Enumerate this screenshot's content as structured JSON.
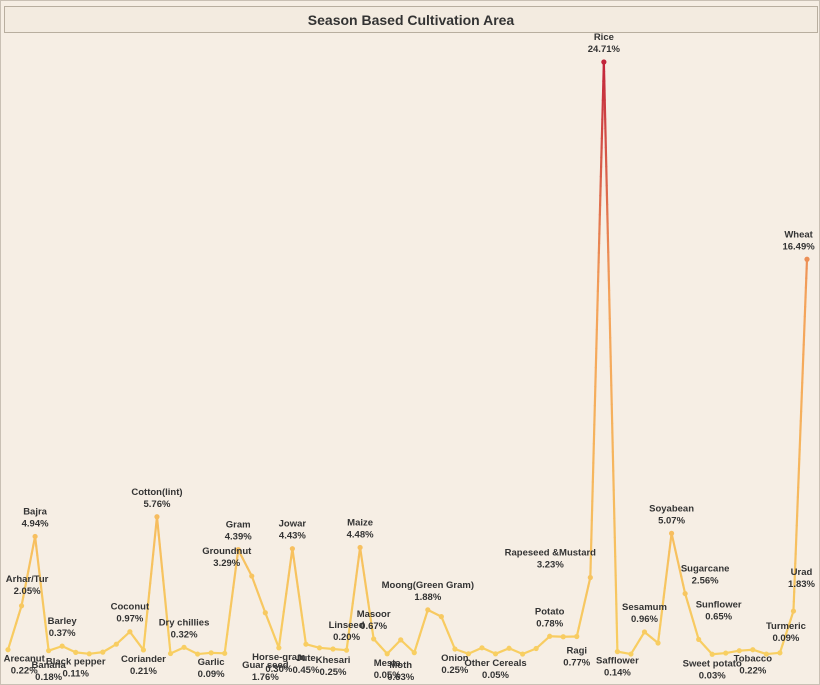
{
  "chart_data": {
    "type": "line",
    "title": "Season Based Cultivation Area",
    "xlabel": "",
    "ylabel": "",
    "ylim": [
      0,
      25
    ],
    "grid": false,
    "color_low": "#f8cf62",
    "color_mid": "#f4a25a",
    "color_high": "#c0203a",
    "points": [
      {
        "crop": "Arecanut",
        "value": 0.22,
        "label": "0.22%"
      },
      {
        "crop": "Arhar/Tur",
        "value": 2.05,
        "label": "2.05%"
      },
      {
        "crop": "Bajra",
        "value": 4.94,
        "label": "4.94%"
      },
      {
        "crop": "Banana",
        "value": 0.18,
        "label": "0.18%"
      },
      {
        "crop": "Barley",
        "value": 0.37,
        "label": "0.37%"
      },
      {
        "crop": "Black pepper",
        "value": 0.11,
        "label": "0.11%"
      },
      {
        "crop": "",
        "value": 0.05,
        "label": ""
      },
      {
        "crop": "",
        "value": 0.12,
        "label": ""
      },
      {
        "crop": "",
        "value": 0.45,
        "label": ""
      },
      {
        "crop": "Coconut",
        "value": 0.97,
        "label": "0.97%"
      },
      {
        "crop": "Coriander",
        "value": 0.21,
        "label": "0.21%"
      },
      {
        "crop": "Cotton(lint)",
        "value": 5.76,
        "label": "5.76%"
      },
      {
        "crop": "",
        "value": 0.06,
        "label": ""
      },
      {
        "crop": "Dry chillies",
        "value": 0.32,
        "label": "0.32%"
      },
      {
        "crop": "",
        "value": 0.04,
        "label": ""
      },
      {
        "crop": "Garlic",
        "value": 0.09,
        "label": "0.09%"
      },
      {
        "crop": "",
        "value": 0.07,
        "label": ""
      },
      {
        "crop": "Gram",
        "value": 4.39,
        "label": "4.39%"
      },
      {
        "crop": "Groundnut",
        "value": 3.29,
        "label": "3.29%"
      },
      {
        "crop": "Guar seed",
        "value": 1.76,
        "label": "1.76%"
      },
      {
        "crop": "Horse-gram",
        "value": 0.3,
        "label": "0.30%"
      },
      {
        "crop": "Jowar",
        "value": 4.43,
        "label": "4.43%"
      },
      {
        "crop": "Jute",
        "value": 0.45,
        "label": "0.45%"
      },
      {
        "crop": "",
        "value": 0.3,
        "label": ""
      },
      {
        "crop": "Khesari",
        "value": 0.25,
        "label": "0.25%"
      },
      {
        "crop": "Linseed",
        "value": 0.2,
        "label": "0.20%"
      },
      {
        "crop": "Maize",
        "value": 4.48,
        "label": "4.48%"
      },
      {
        "crop": "Masoor",
        "value": 0.67,
        "label": "0.67%"
      },
      {
        "crop": "Mesta",
        "value": 0.05,
        "label": "0.05%"
      },
      {
        "crop": "Moth",
        "value": 0.63,
        "label": "0.63%"
      },
      {
        "crop": "",
        "value": 0.1,
        "label": ""
      },
      {
        "crop": "Moong(Green Gram)",
        "value": 1.88,
        "label": "1.88%"
      },
      {
        "crop": "",
        "value": 1.6,
        "label": ""
      },
      {
        "crop": "Onion",
        "value": 0.25,
        "label": "0.25%"
      },
      {
        "crop": "",
        "value": 0.05,
        "label": ""
      },
      {
        "crop": "",
        "value": 0.3,
        "label": ""
      },
      {
        "crop": "Other Cereals",
        "value": 0.05,
        "label": "0.05%"
      },
      {
        "crop": "",
        "value": 0.28,
        "label": ""
      },
      {
        "crop": "",
        "value": 0.04,
        "label": ""
      },
      {
        "crop": "",
        "value": 0.27,
        "label": ""
      },
      {
        "crop": "Potato",
        "value": 0.78,
        "label": "0.78%"
      },
      {
        "crop": "",
        "value": 0.76,
        "label": ""
      },
      {
        "crop": "Ragi",
        "value": 0.77,
        "label": "0.77%"
      },
      {
        "crop": "Rapeseed &Mustard",
        "value": 3.23,
        "label": "3.23%"
      },
      {
        "crop": "Rice",
        "value": 24.71,
        "label": "24.71%"
      },
      {
        "crop": "Safflower",
        "value": 0.14,
        "label": "0.14%"
      },
      {
        "crop": "",
        "value": 0.04,
        "label": ""
      },
      {
        "crop": "Sesamum",
        "value": 0.96,
        "label": "0.96%"
      },
      {
        "crop": "",
        "value": 0.5,
        "label": ""
      },
      {
        "crop": "Soyabean",
        "value": 5.07,
        "label": "5.07%"
      },
      {
        "crop": "Sugarcane",
        "value": 2.56,
        "label": "2.56%"
      },
      {
        "crop": "Sunflower",
        "value": 0.65,
        "label": "0.65%"
      },
      {
        "crop": "Sweet potato",
        "value": 0.03,
        "label": "0.03%"
      },
      {
        "crop": "",
        "value": 0.08,
        "label": ""
      },
      {
        "crop": "",
        "value": 0.18,
        "label": ""
      },
      {
        "crop": "Tobacco",
        "value": 0.22,
        "label": "0.22%"
      },
      {
        "crop": "",
        "value": 0.04,
        "label": ""
      },
      {
        "crop": "Turmeric",
        "value": 0.09,
        "label": "0.09%"
      },
      {
        "crop": "Urad",
        "value": 1.83,
        "label": "1.83%"
      },
      {
        "crop": "Wheat",
        "value": 16.49,
        "label": "16.49%"
      }
    ]
  }
}
